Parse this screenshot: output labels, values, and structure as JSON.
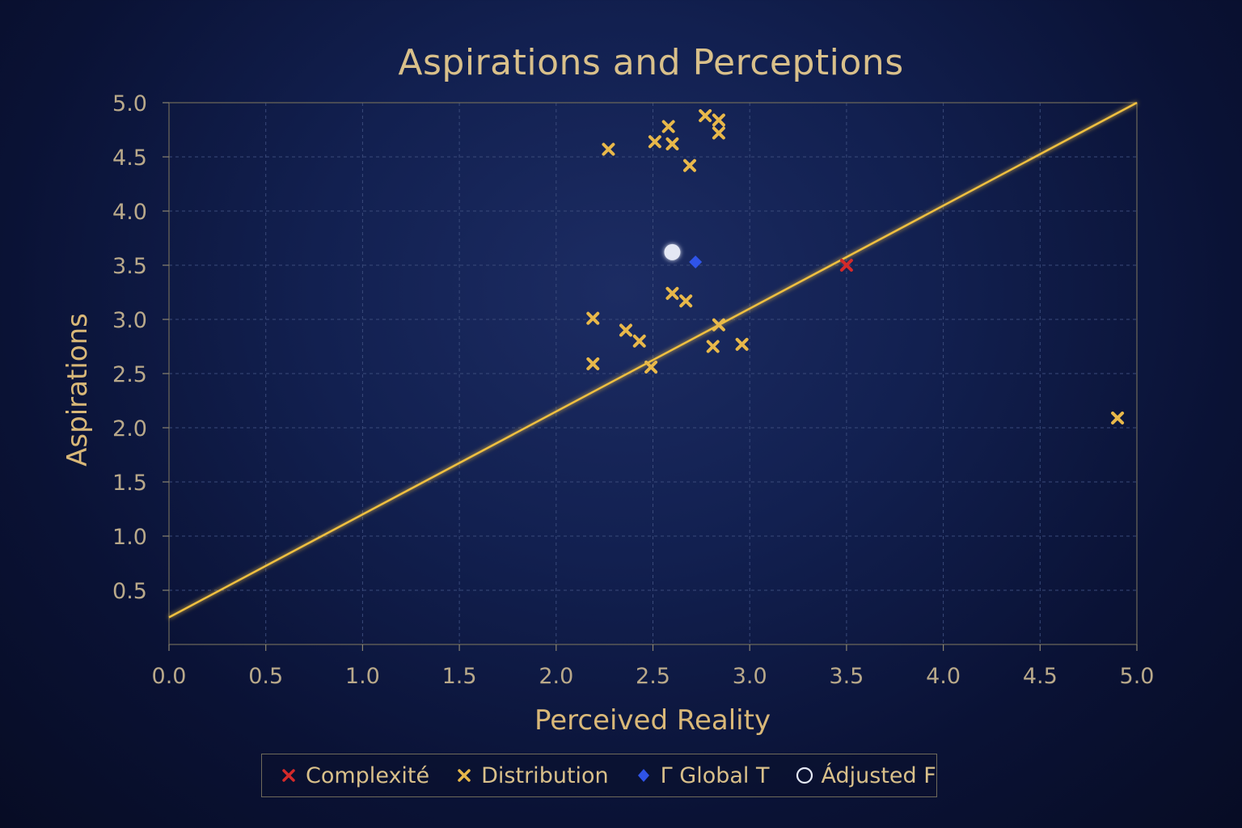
{
  "chart_data": {
    "type": "scatter",
    "title": "Aspirations and Perceptions",
    "xlabel": "Perceived Reality",
    "ylabel": "Aspirations",
    "xlim": [
      0.0,
      5.0
    ],
    "ylim": [
      0.0,
      5.0
    ],
    "x_ticks": [
      "0.0",
      "0.5",
      "1.0",
      "1.5",
      "2.0",
      "2.5",
      "3.0",
      "3.5",
      "4.0",
      "4.5",
      "5.0"
    ],
    "y_ticks": [
      "0.5",
      "1.0",
      "1.5",
      "2.0",
      "2.5",
      "3.0",
      "3.5",
      "4.0",
      "4.5",
      "5.0"
    ],
    "grid": true,
    "legend_position": "bottom",
    "series": [
      {
        "name": "Complexité",
        "marker": "x",
        "color": "#d42a2a",
        "points": [
          [
            3.5,
            3.5
          ]
        ]
      },
      {
        "name": "Distribution",
        "marker": "x",
        "color": "#e8b84a",
        "points": [
          [
            2.27,
            4.57
          ],
          [
            2.51,
            4.64
          ],
          [
            2.6,
            4.62
          ],
          [
            2.58,
            4.78
          ],
          [
            2.77,
            4.88
          ],
          [
            2.84,
            4.84
          ],
          [
            2.84,
            4.72
          ],
          [
            2.69,
            4.42
          ],
          [
            2.6,
            3.24
          ],
          [
            2.67,
            3.17
          ],
          [
            2.19,
            3.01
          ],
          [
            2.36,
            2.9
          ],
          [
            2.43,
            2.8
          ],
          [
            2.19,
            2.59
          ],
          [
            2.49,
            2.56
          ],
          [
            2.84,
            2.95
          ],
          [
            2.81,
            2.75
          ],
          [
            2.96,
            2.77
          ],
          [
            4.9,
            2.09
          ]
        ]
      },
      {
        "name": "Global T",
        "legend_label": "Γ Global T",
        "marker": "diamond",
        "color": "#2f54e8",
        "points": [
          [
            2.72,
            3.53
          ]
        ]
      },
      {
        "name": "Adjusted F",
        "legend_label": "Ádjusted F",
        "marker": "circle",
        "color": "#e4e8f4",
        "points": [
          [
            2.6,
            3.62
          ]
        ]
      }
    ],
    "trend_line": {
      "color": "#f0c040",
      "points": [
        [
          0.0,
          0.25
        ],
        [
          5.0,
          5.0
        ]
      ]
    }
  }
}
